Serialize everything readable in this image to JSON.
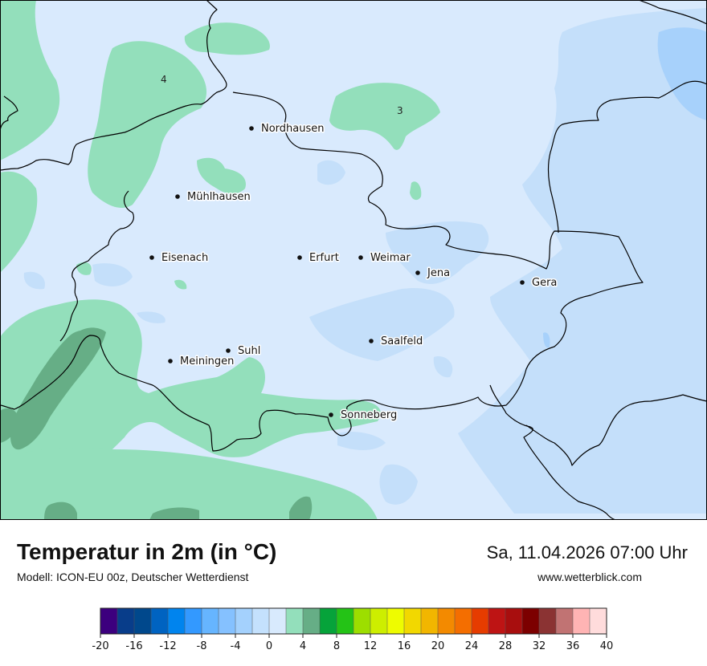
{
  "title": "Temperatur in 2m (in °C)",
  "subtitle": "Modell: ICON-EU 00z, Deutscher Wetterdienst",
  "datetime": "Sa, 11.04.2026 07:00 Uhr",
  "website": "www.wetterblick.com",
  "cities": [
    {
      "name": "Nordhausen"
    },
    {
      "name": "Mühlhausen"
    },
    {
      "name": "Eisenach"
    },
    {
      "name": "Erfurt"
    },
    {
      "name": "Weimar"
    },
    {
      "name": "Jena"
    },
    {
      "name": "Gera"
    },
    {
      "name": "Saalfeld"
    },
    {
      "name": "Suhl"
    },
    {
      "name": "Meiningen"
    },
    {
      "name": "Sonneberg"
    }
  ],
  "contour_labels": [
    "4",
    "3"
  ],
  "colors": {
    "band_0_2": "#d9eafd",
    "band_minus2_0": "#c4dffa",
    "band_minus4_minus2": "#a7d1fb",
    "band_2_4": "#93dfbb",
    "band_4_6": "#66ae86",
    "border": "#000000"
  },
  "legend": {
    "ticks": [
      "-20",
      "-16",
      "-12",
      "-8",
      "-4",
      "0",
      "4",
      "8",
      "12",
      "16",
      "20",
      "24",
      "28",
      "32",
      "36",
      "40"
    ],
    "colors": [
      "#3c007e",
      "#083d8a",
      "#00488c",
      "#0063c1",
      "#0084ee",
      "#3399ff",
      "#66b5ff",
      "#85c1ff",
      "#a4d1fd",
      "#c4e1fd",
      "#d8eafd",
      "#93dfbb",
      "#66ae86",
      "#06a33a",
      "#24c316",
      "#9dde00",
      "#cdee00",
      "#eefc00",
      "#f2d800",
      "#f2b600",
      "#f38a00",
      "#f46e00",
      "#e63c00",
      "#be1414",
      "#a80e0e",
      "#7c0000",
      "#8b3333",
      "#c17373",
      "#ffb4b4",
      "#ffdcdc"
    ]
  }
}
